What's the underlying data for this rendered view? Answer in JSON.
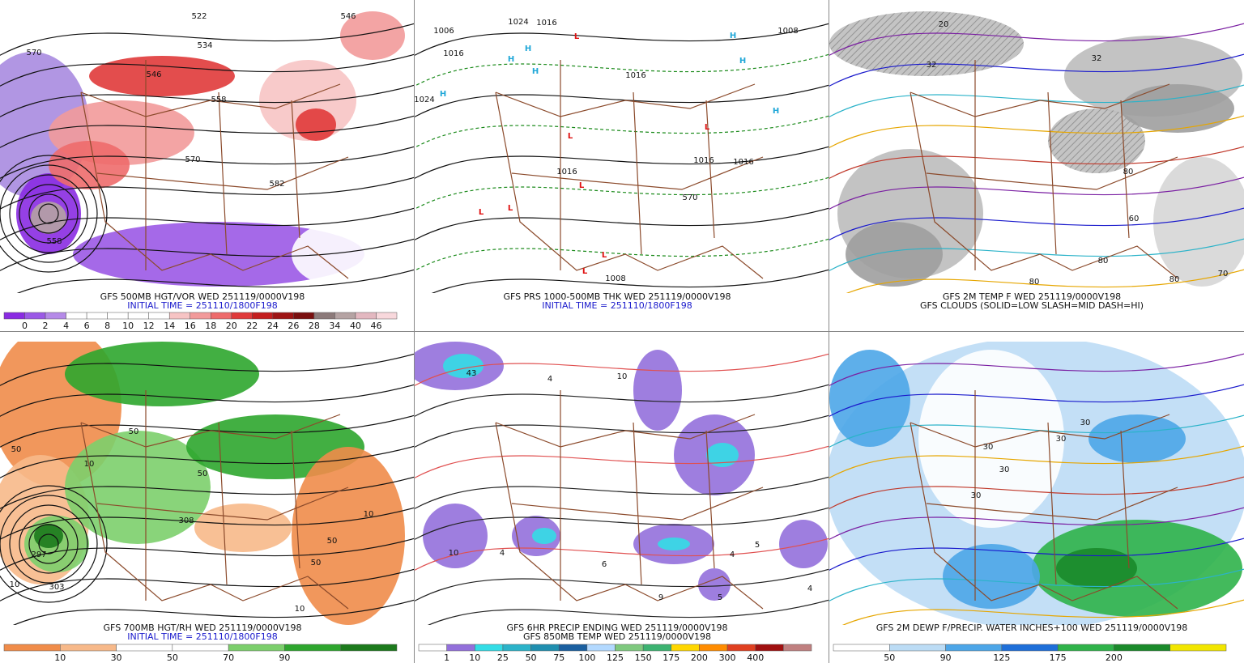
{
  "panels": [
    {
      "caption": [
        "GFS 500MB HGT/VOR WED 251119/0000V198",
        "INITIAL TIME = 251110/1800F198"
      ],
      "colorbar": {
        "colors": [
          "#8a2be2",
          "#9b59e6",
          "#b58ae8",
          "#ffffff",
          "#ffffff",
          "#ffffff",
          "#ffffff",
          "#ffffff",
          "#f7c4c4",
          "#f29a9a",
          "#ee6b6b",
          "#e03a3a",
          "#c41e1e",
          "#9e1414",
          "#7a0f0f",
          "#8c7a7a",
          "#b5a3a3",
          "#e3b8c0",
          "#f8d8dc"
        ],
        "labels": [
          "0",
          "2",
          "4",
          "6",
          "8",
          "10",
          "12",
          "14",
          "16",
          "18",
          "20",
          "22",
          "24",
          "26",
          "28",
          "34",
          "40",
          "46"
        ]
      },
      "map_labels": [
        "570",
        "546",
        "534",
        "522",
        "546",
        "558",
        "570",
        "582",
        "558"
      ]
    },
    {
      "caption": [
        "GFS PRS 1000-500MB THK WED 251119/0000V198",
        "INITIAL TIME = 251110/1800F198"
      ],
      "map_labels": [
        "1006",
        "1016",
        "1024",
        "1024",
        "1016",
        "1016",
        "1016",
        "1016",
        "1016",
        "1008",
        "1008",
        "H",
        "H",
        "H",
        "H",
        "H",
        "H",
        "H",
        "L",
        "L",
        "L",
        "L",
        "L",
        "L",
        "L",
        "L",
        "570"
      ]
    },
    {
      "caption": [
        "GFS 2M TEMP F WED 251119/0000V198",
        "GFS CLOUDS (SOLID=LOW SLASH=MID DASH=HI)"
      ],
      "map_labels": [
        "20",
        "32",
        "32",
        "80",
        "60",
        "80",
        "80",
        "70",
        "80"
      ]
    },
    {
      "caption": [
        "GFS 700MB HGT/RH WED 251119/0000V198",
        "INITIAL TIME = 251110/1800F198"
      ],
      "colorbar": {
        "colors": [
          "#f08c4a",
          "#f7b98a",
          "#ffffff",
          "#ffffff",
          "#7ccf6c",
          "#2ea62e",
          "#1c7a1c"
        ],
        "labels": [
          "10",
          "30",
          "50",
          "70",
          "90"
        ]
      },
      "map_labels": [
        "50",
        "10",
        "50",
        "50",
        "308",
        "50",
        "10",
        "50",
        "10",
        "10",
        "297",
        "303"
      ]
    },
    {
      "caption": [
        "GFS 6HR PRECIP ENDING WED 251119/0000V198",
        "GFS 850MB TEMP WED 251119/0000V198"
      ],
      "colorbar": {
        "colors": [
          "#ffffff",
          "#9370db",
          "#33dde6",
          "#2bb3c9",
          "#1f8fb0",
          "#1a5fa0",
          "#b3d9ff",
          "#7fc97f",
          "#3cb371",
          "#ffd700",
          "#ff8c00",
          "#e04020",
          "#a01010",
          "#c08080"
        ],
        "labels": [
          "1",
          "10",
          "25",
          "50",
          "75",
          "100",
          "125",
          "150",
          "175",
          "200",
          "300",
          "400"
        ]
      },
      "map_labels": [
        "43",
        "4",
        "10",
        "10",
        "4",
        "6",
        "9",
        "4",
        "5",
        "4",
        "5"
      ]
    },
    {
      "caption": [
        "GFS 2M DEWP F/PRECIP. WATER INCHES+100 WED 251119/0000V198"
      ],
      "colorbar": {
        "colors": [
          "#ffffff",
          "#bcdcf5",
          "#4da6e8",
          "#1e6fd9",
          "#2fb34a",
          "#1a8a2a",
          "#f2e600"
        ],
        "labels": [
          "50",
          "90",
          "125",
          "175",
          "200"
        ]
      },
      "map_labels": [
        "30",
        "30",
        "30",
        "30",
        "30"
      ]
    }
  ]
}
